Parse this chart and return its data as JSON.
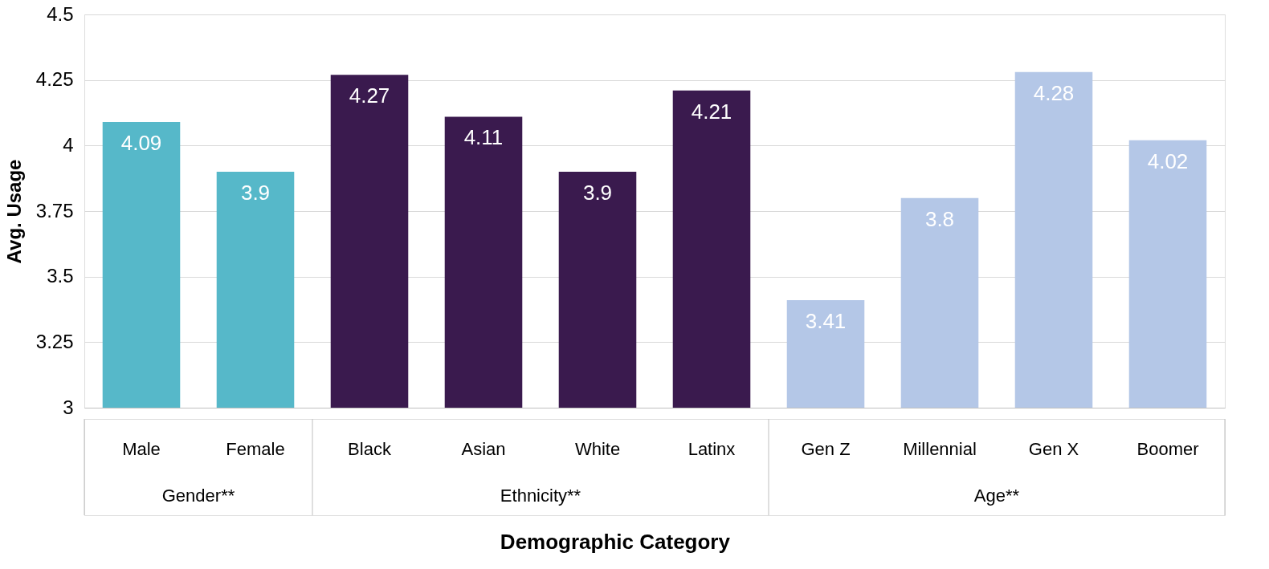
{
  "chart_data": {
    "type": "bar",
    "xlabel": "Demographic Category",
    "ylabel": "Avg. Usage",
    "categories": [
      "Male",
      "Female",
      "Black",
      "Asian",
      "White",
      "Latinx",
      "Gen Z",
      "Millennial",
      "Gen X",
      "Boomer"
    ],
    "values": [
      4.09,
      3.9,
      4.27,
      4.11,
      3.9,
      4.21,
      3.41,
      3.8,
      4.28,
      4.02
    ],
    "colors": [
      "#56b8c9",
      "#56b8c9",
      "#3a1a4e",
      "#3a1a4e",
      "#3a1a4e",
      "#3a1a4e",
      "#b4c7e7",
      "#b4c7e7",
      "#b4c7e7",
      "#b4c7e7"
    ],
    "data_labels": true,
    "ylim": [
      3,
      4.5
    ],
    "yticks": [
      3,
      3.25,
      3.5,
      3.75,
      4,
      4.25,
      4.5
    ],
    "grid": "y",
    "annotations": [
      "Gender**",
      "Ethnicity**",
      "Age**"
    ]
  }
}
